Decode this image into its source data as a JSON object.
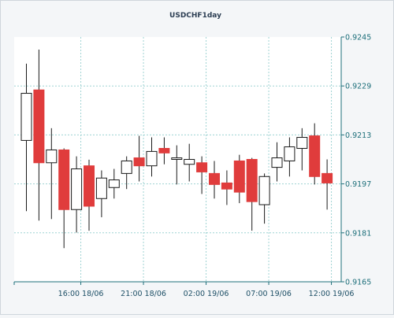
{
  "chart_data": {
    "type": "candlestick",
    "title": "USDCHF1day",
    "ylim": [
      0.9165,
      0.9245
    ],
    "y_ticks": [
      "0.9165",
      "0.9181",
      "0.9197",
      "0.9213",
      "0.9229",
      "0.9245"
    ],
    "x_ticks": [
      "16:00 18/06",
      "21:00 18/06",
      "02:00 19/06",
      "07:00 19/06",
      "12:00 19/06"
    ],
    "grid": true,
    "colors": {
      "bullish_body": "#ffffff",
      "bearish_body": "#e03c3c",
      "wick": "#1a1a1a",
      "grid": "#9fd3d3",
      "axis": "#1d6f7a",
      "plot_background": "#ffffff",
      "page_background": "#f4f6f8"
    },
    "candles": [
      {
        "open": 0.92112,
        "high": 0.92363,
        "low": 0.91881,
        "close": 0.92266
      },
      {
        "open": 0.92277,
        "high": 0.92409,
        "low": 0.9185,
        "close": 0.92039
      },
      {
        "open": 0.92039,
        "high": 0.92152,
        "low": 0.91855,
        "close": 0.92081
      },
      {
        "open": 0.92081,
        "high": 0.92086,
        "low": 0.9176,
        "close": 0.91886
      },
      {
        "open": 0.91886,
        "high": 0.9206,
        "low": 0.91811,
        "close": 0.92019
      },
      {
        "open": 0.92029,
        "high": 0.92049,
        "low": 0.91817,
        "close": 0.91897
      },
      {
        "open": 0.91922,
        "high": 0.92014,
        "low": 0.91861,
        "close": 0.91989
      },
      {
        "open": 0.91958,
        "high": 0.92019,
        "low": 0.91922,
        "close": 0.91983
      },
      {
        "open": 0.92004,
        "high": 0.9206,
        "low": 0.91953,
        "close": 0.92045
      },
      {
        "open": 0.92055,
        "high": 0.92127,
        "low": 0.91978,
        "close": 0.92029
      },
      {
        "open": 0.92029,
        "high": 0.92122,
        "low": 0.91994,
        "close": 0.92076
      },
      {
        "open": 0.92086,
        "high": 0.92122,
        "low": 0.92034,
        "close": 0.92071
      },
      {
        "open": 0.9205,
        "high": 0.92096,
        "low": 0.91968,
        "close": 0.92055
      },
      {
        "open": 0.92034,
        "high": 0.92101,
        "low": 0.91978,
        "close": 0.9205
      },
      {
        "open": 0.92039,
        "high": 0.9206,
        "low": 0.91937,
        "close": 0.92009
      },
      {
        "open": 0.92004,
        "high": 0.92045,
        "low": 0.91922,
        "close": 0.91968
      },
      {
        "open": 0.91973,
        "high": 0.92014,
        "low": 0.91901,
        "close": 0.91953
      },
      {
        "open": 0.92045,
        "high": 0.92065,
        "low": 0.91907,
        "close": 0.91943
      },
      {
        "open": 0.9205,
        "high": 0.92055,
        "low": 0.91817,
        "close": 0.91912
      },
      {
        "open": 0.91902,
        "high": 0.92004,
        "low": 0.9184,
        "close": 0.91994
      },
      {
        "open": 0.92024,
        "high": 0.92106,
        "low": 0.91978,
        "close": 0.92055
      },
      {
        "open": 0.92045,
        "high": 0.92122,
        "low": 0.91994,
        "close": 0.92091
      },
      {
        "open": 0.92086,
        "high": 0.92152,
        "low": 0.92014,
        "close": 0.92122
      },
      {
        "open": 0.92127,
        "high": 0.92168,
        "low": 0.91968,
        "close": 0.91994
      },
      {
        "open": 0.92004,
        "high": 0.9205,
        "low": 0.91886,
        "close": 0.91973
      }
    ]
  }
}
